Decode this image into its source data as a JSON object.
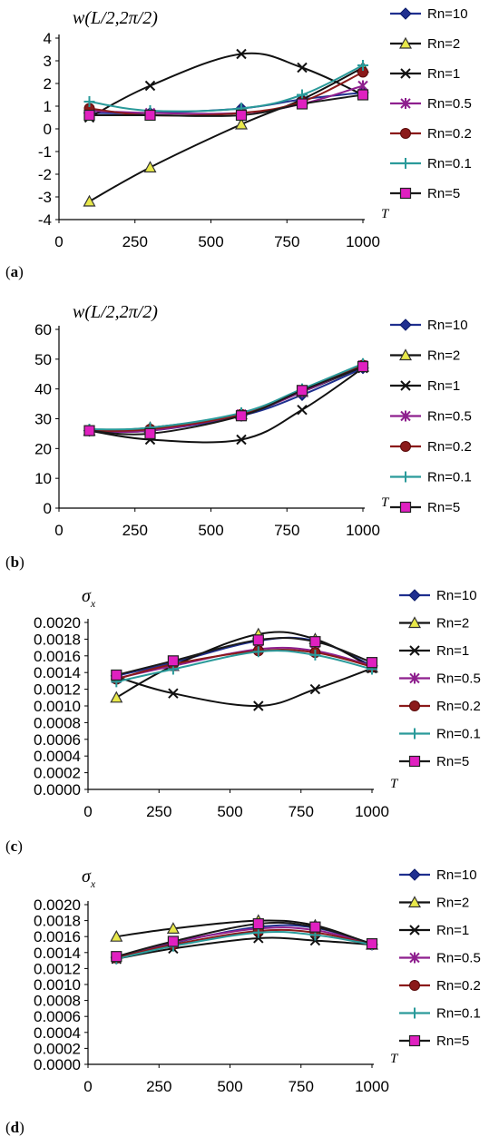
{
  "legend_colors": {
    "Rn=10": "#1f2f8f",
    "Rn=2": "#e8e84a",
    "Rn=1": "#111111",
    "Rn=0.5": "#8e1f8e",
    "Rn=0.2": "#8b1a1a",
    "Rn=0.1": "#2a9a9a",
    "Rn=5": "#e020c0"
  },
  "panel_labels": [
    "a",
    "b",
    "c",
    "d"
  ],
  "chart_data": [
    {
      "type": "line",
      "ylabel": "w(L/2,2π/2)",
      "xlabel": "T",
      "x": [
        100,
        300,
        600,
        800,
        1000
      ],
      "xticks": [
        "0",
        "250",
        "500",
        "750",
        "1000"
      ],
      "xlim": [
        0,
        1000
      ],
      "ylim": [
        -4,
        4
      ],
      "yticks": [
        "-4",
        "-3",
        "-2",
        "-1",
        "0",
        "1",
        "2",
        "3",
        "4"
      ],
      "series": [
        {
          "name": "Rn=10",
          "values": [
            0.7,
            0.7,
            0.9,
            1.3,
            1.6
          ]
        },
        {
          "name": "Rn=2",
          "values": [
            -3.2,
            -1.7,
            0.2,
            1.3,
            2.7
          ]
        },
        {
          "name": "Rn=1",
          "values": [
            0.5,
            1.9,
            3.3,
            2.7,
            1.5
          ]
        },
        {
          "name": "Rn=0.5",
          "values": [
            0.8,
            0.7,
            0.7,
            1.1,
            1.9
          ]
        },
        {
          "name": "Rn=0.2",
          "values": [
            0.9,
            0.6,
            0.7,
            1.2,
            2.5
          ]
        },
        {
          "name": "Rn=0.1",
          "values": [
            1.2,
            0.8,
            0.9,
            1.5,
            2.8
          ]
        },
        {
          "name": "Rn=5",
          "values": [
            0.6,
            0.6,
            0.6,
            1.1,
            1.5
          ]
        }
      ]
    },
    {
      "type": "line",
      "ylabel": "w(L/2,2π/2)",
      "xlabel": "T",
      "x": [
        100,
        300,
        600,
        800,
        1000
      ],
      "xticks": [
        "0",
        "250",
        "500",
        "750",
        "1000"
      ],
      "xlim": [
        0,
        1000
      ],
      "ylim": [
        0,
        60
      ],
      "yticks": [
        "0",
        "10",
        "20",
        "30",
        "40",
        "50",
        "60"
      ],
      "series": [
        {
          "name": "Rn=10",
          "values": [
            26,
            26,
            31,
            38,
            47
          ]
        },
        {
          "name": "Rn=2",
          "values": [
            26,
            27,
            31.5,
            39,
            47.5
          ]
        },
        {
          "name": "Rn=1",
          "values": [
            26,
            23,
            23,
            33,
            47
          ]
        },
        {
          "name": "Rn=0.5",
          "values": [
            26,
            26,
            31.5,
            39,
            48
          ]
        },
        {
          "name": "Rn=0.2",
          "values": [
            26,
            26.5,
            31.5,
            39.5,
            48
          ]
        },
        {
          "name": "Rn=0.1",
          "values": [
            26.5,
            27,
            32,
            40,
            48.5
          ]
        },
        {
          "name": "Rn=5",
          "values": [
            26,
            25,
            31,
            39.5,
            47.5
          ]
        }
      ]
    },
    {
      "type": "line",
      "ylabel": "σx",
      "xlabel": "T",
      "x": [
        100,
        300,
        600,
        800,
        1000
      ],
      "xticks": [
        "0",
        "250",
        "500",
        "750",
        "1000"
      ],
      "xlim": [
        0,
        1000
      ],
      "ylim": [
        0,
        0.002
      ],
      "yticks": [
        "0.0000",
        "0.0002",
        "0.0004",
        "0.0006",
        "0.0008",
        "0.0010",
        "0.0012",
        "0.0014",
        "0.0016",
        "0.0018",
        "0.0020"
      ],
      "series": [
        {
          "name": "Rn=10",
          "values": [
            0.00136,
            0.00152,
            0.00178,
            0.00178,
            0.00148
          ]
        },
        {
          "name": "Rn=2",
          "values": [
            0.0011,
            0.00148,
            0.00186,
            0.0018,
            0.00146
          ]
        },
        {
          "name": "Rn=1",
          "values": [
            0.00135,
            0.00115,
            0.001,
            0.0012,
            0.00145
          ]
        },
        {
          "name": "Rn=0.5",
          "values": [
            0.00133,
            0.00148,
            0.00168,
            0.00166,
            0.00148
          ]
        },
        {
          "name": "Rn=0.2",
          "values": [
            0.00132,
            0.0015,
            0.00166,
            0.00164,
            0.00147
          ]
        },
        {
          "name": "Rn=0.1",
          "values": [
            0.00129,
            0.00144,
            0.00165,
            0.00161,
            0.00144
          ]
        },
        {
          "name": "Rn=5",
          "values": [
            0.00137,
            0.00154,
            0.00179,
            0.00177,
            0.00152
          ]
        }
      ]
    },
    {
      "type": "line",
      "ylabel": "σx",
      "xlabel": "T",
      "x": [
        100,
        300,
        600,
        800,
        1000
      ],
      "xticks": [
        "0",
        "250",
        "500",
        "750",
        "1000"
      ],
      "xlim": [
        0,
        1000
      ],
      "ylim": [
        0,
        0.002
      ],
      "yticks": [
        "0.0000",
        "0.0002",
        "0.0004",
        "0.0006",
        "0.0008",
        "0.0010",
        "0.0012",
        "0.0014",
        "0.0016",
        "0.0018",
        "0.0020"
      ],
      "series": [
        {
          "name": "Rn=10",
          "values": [
            0.00134,
            0.00152,
            0.00172,
            0.00171,
            0.0015
          ]
        },
        {
          "name": "Rn=2",
          "values": [
            0.0016,
            0.0017,
            0.0018,
            0.00174,
            0.0015
          ]
        },
        {
          "name": "Rn=1",
          "values": [
            0.00132,
            0.00145,
            0.00158,
            0.00155,
            0.0015
          ]
        },
        {
          "name": "Rn=0.5",
          "values": [
            0.00134,
            0.00153,
            0.0017,
            0.00168,
            0.0015
          ]
        },
        {
          "name": "Rn=0.2",
          "values": [
            0.00133,
            0.0015,
            0.00167,
            0.00165,
            0.0015
          ]
        },
        {
          "name": "Rn=0.1",
          "values": [
            0.00132,
            0.00148,
            0.00165,
            0.00162,
            0.0015
          ]
        },
        {
          "name": "Rn=5",
          "values": [
            0.00135,
            0.00154,
            0.00176,
            0.00172,
            0.00151
          ]
        }
      ]
    }
  ]
}
